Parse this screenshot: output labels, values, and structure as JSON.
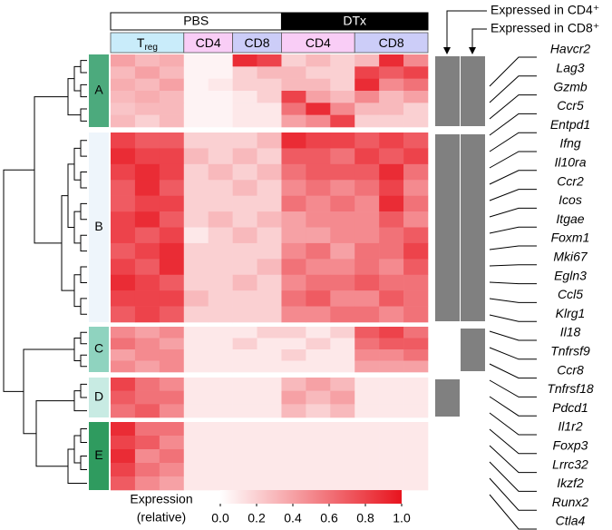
{
  "chart_data": {
    "type": "heatmap",
    "groups": [
      {
        "label": "PBS",
        "fill": "#ffffff",
        "text": "#000000"
      },
      {
        "label": "DTx",
        "fill": "#000000",
        "text": "#ffffff"
      }
    ],
    "conditions": [
      {
        "label": "T",
        "sub": "reg",
        "color": "#c9ecfa"
      },
      {
        "label": "CD4",
        "color": "#f9cdf6"
      },
      {
        "label": "CD8",
        "color": "#cccdf8"
      },
      {
        "label": "CD4",
        "color": "#f9cdf6"
      },
      {
        "label": "CD8",
        "color": "#cccdf8"
      }
    ],
    "clusters": [
      {
        "name": "A",
        "color": "#4caa7d",
        "expressed": [
          true,
          true
        ],
        "values": [
          [
            0.4,
            0.3,
            0.35,
            0.05,
            0.05,
            0.9,
            0.8,
            0.2,
            0.3,
            0.2,
            0.3,
            0.9,
            0.5
          ],
          [
            0.3,
            0.4,
            0.3,
            0.05,
            0.05,
            0.2,
            0.3,
            0.3,
            0.2,
            0.2,
            0.8,
            0.7,
            0.8
          ],
          [
            0.35,
            0.3,
            0.4,
            0.05,
            0.1,
            0.2,
            0.2,
            0.3,
            0.3,
            0.2,
            0.9,
            0.5,
            0.6
          ],
          [
            0.3,
            0.35,
            0.3,
            0.05,
            0.05,
            0.1,
            0.2,
            0.8,
            0.4,
            0.3,
            0.5,
            0.3,
            0.4
          ],
          [
            0.25,
            0.3,
            0.3,
            0.05,
            0.05,
            0.1,
            0.1,
            0.6,
            0.9,
            0.5,
            0.3,
            0.3,
            0.2
          ],
          [
            0.3,
            0.2,
            0.3,
            0.05,
            0.05,
            0.1,
            0.1,
            0.4,
            0.5,
            0.8,
            0.2,
            0.2,
            0.2
          ]
        ]
      },
      {
        "name": "B",
        "color": "#eef5fb",
        "expressed": [
          true,
          true
        ],
        "values": [
          [
            0.8,
            0.7,
            0.7,
            0.2,
            0.2,
            0.2,
            0.3,
            0.9,
            0.8,
            0.8,
            0.7,
            0.8,
            0.7
          ],
          [
            0.9,
            0.8,
            0.8,
            0.3,
            0.2,
            0.3,
            0.2,
            0.7,
            0.7,
            0.6,
            0.8,
            0.7,
            0.8
          ],
          [
            0.8,
            0.9,
            0.8,
            0.2,
            0.3,
            0.2,
            0.3,
            0.6,
            0.7,
            0.7,
            0.7,
            0.9,
            0.6
          ],
          [
            0.7,
            0.9,
            0.7,
            0.2,
            0.2,
            0.3,
            0.2,
            0.5,
            0.6,
            0.5,
            0.6,
            0.8,
            0.5
          ],
          [
            0.7,
            0.8,
            0.8,
            0.2,
            0.2,
            0.2,
            0.2,
            0.6,
            0.5,
            0.6,
            0.5,
            0.9,
            0.6
          ],
          [
            0.8,
            0.9,
            0.7,
            0.2,
            0.3,
            0.2,
            0.3,
            0.4,
            0.5,
            0.5,
            0.5,
            0.7,
            0.5
          ],
          [
            0.8,
            0.7,
            0.8,
            0.1,
            0.2,
            0.3,
            0.2,
            0.4,
            0.4,
            0.5,
            0.5,
            0.6,
            0.7
          ],
          [
            0.7,
            0.8,
            0.9,
            0.2,
            0.2,
            0.2,
            0.2,
            0.5,
            0.6,
            0.4,
            0.6,
            0.6,
            0.8
          ],
          [
            0.8,
            0.7,
            0.9,
            0.2,
            0.2,
            0.2,
            0.3,
            0.6,
            0.5,
            0.5,
            0.6,
            0.5,
            0.7
          ],
          [
            0.9,
            0.8,
            0.7,
            0.2,
            0.2,
            0.3,
            0.2,
            0.5,
            0.6,
            0.6,
            0.7,
            0.6,
            0.6
          ],
          [
            0.8,
            0.8,
            0.8,
            0.3,
            0.2,
            0.2,
            0.2,
            0.6,
            0.7,
            0.5,
            0.5,
            0.7,
            0.6
          ],
          [
            0.7,
            0.8,
            0.7,
            0.2,
            0.2,
            0.2,
            0.2,
            0.5,
            0.5,
            0.6,
            0.6,
            0.5,
            0.6
          ]
        ]
      },
      {
        "name": "C",
        "color": "#8fd3bf",
        "expressed": [
          false,
          true
        ],
        "values": [
          [
            0.5,
            0.4,
            0.5,
            0.1,
            0.1,
            0.1,
            0.2,
            0.2,
            0.1,
            0.2,
            0.7,
            0.8,
            0.6
          ],
          [
            0.6,
            0.5,
            0.4,
            0.1,
            0.1,
            0.2,
            0.1,
            0.1,
            0.2,
            0.1,
            0.6,
            0.7,
            0.7
          ],
          [
            0.4,
            0.5,
            0.5,
            0.1,
            0.1,
            0.1,
            0.1,
            0.2,
            0.1,
            0.1,
            0.5,
            0.5,
            0.6
          ],
          [
            0.5,
            0.4,
            0.5,
            0.1,
            0.1,
            0.1,
            0.1,
            0.1,
            0.1,
            0.1,
            0.4,
            0.4,
            0.4
          ]
        ]
      },
      {
        "name": "D",
        "color": "#c8ebe3",
        "expressed": [
          true,
          false
        ],
        "values": [
          [
            0.8,
            0.6,
            0.5,
            0.1,
            0.1,
            0.1,
            0.1,
            0.3,
            0.4,
            0.3,
            0.1,
            0.1,
            0.1
          ],
          [
            0.7,
            0.6,
            0.6,
            0.1,
            0.1,
            0.1,
            0.1,
            0.4,
            0.3,
            0.4,
            0.1,
            0.1,
            0.1
          ],
          [
            0.6,
            0.7,
            0.5,
            0.1,
            0.1,
            0.1,
            0.1,
            0.3,
            0.2,
            0.3,
            0.1,
            0.1,
            0.1
          ]
        ]
      },
      {
        "name": "E",
        "color": "#2f9b5f",
        "expressed": [
          false,
          false
        ],
        "values": [
          [
            0.9,
            0.6,
            0.6,
            0.1,
            0.1,
            0.1,
            0.1,
            0.1,
            0.1,
            0.1,
            0.1,
            0.1,
            0.1
          ],
          [
            0.8,
            0.7,
            0.5,
            0.1,
            0.1,
            0.1,
            0.1,
            0.1,
            0.1,
            0.1,
            0.1,
            0.1,
            0.1
          ],
          [
            0.9,
            0.5,
            0.6,
            0.1,
            0.1,
            0.1,
            0.1,
            0.1,
            0.1,
            0.1,
            0.1,
            0.1,
            0.1
          ],
          [
            0.8,
            0.6,
            0.5,
            0.1,
            0.1,
            0.1,
            0.1,
            0.1,
            0.1,
            0.1,
            0.1,
            0.1,
            0.1
          ],
          [
            0.7,
            0.5,
            0.4,
            0.1,
            0.1,
            0.1,
            0.1,
            0.1,
            0.1,
            0.1,
            0.1,
            0.1,
            0.1
          ]
        ]
      }
    ],
    "expressed_labels": [
      "Expressed in CD4⁺",
      "Expressed in CD8⁺"
    ],
    "expressed_color": "#808080",
    "genes": [
      "Havcr2",
      "Lag3",
      "Gzmb",
      "Ccr5",
      "Entpd1",
      "Ifng",
      "Il10ra",
      "Ccr2",
      "Icos",
      "Itgae",
      "Foxm1",
      "Mki67",
      "Egln3",
      "Ccl5",
      "Klrg1",
      "Il18",
      "Tnfrsf9",
      "Ccr8",
      "Tnfrsf18",
      "Pdcd1",
      "Il1r2",
      "Foxp3",
      "Lrrc32",
      "Ikzf2",
      "Runx2",
      "Ctla4"
    ],
    "colorbar_title": [
      "Expression",
      "(relative)"
    ],
    "zlim": [
      0,
      1
    ],
    "colors": [
      "#ffffff",
      "#e8141e"
    ],
    "zticks": [
      {
        "value": 0,
        "label": "0.0"
      },
      {
        "value": 0.2,
        "label": "0.2"
      },
      {
        "value": 0.4,
        "label": "0.4"
      },
      {
        "value": 0.6,
        "label": "0.6"
      },
      {
        "value": 0.8,
        "label": "0.8"
      },
      {
        "value": 1,
        "label": "1.0"
      }
    ]
  }
}
